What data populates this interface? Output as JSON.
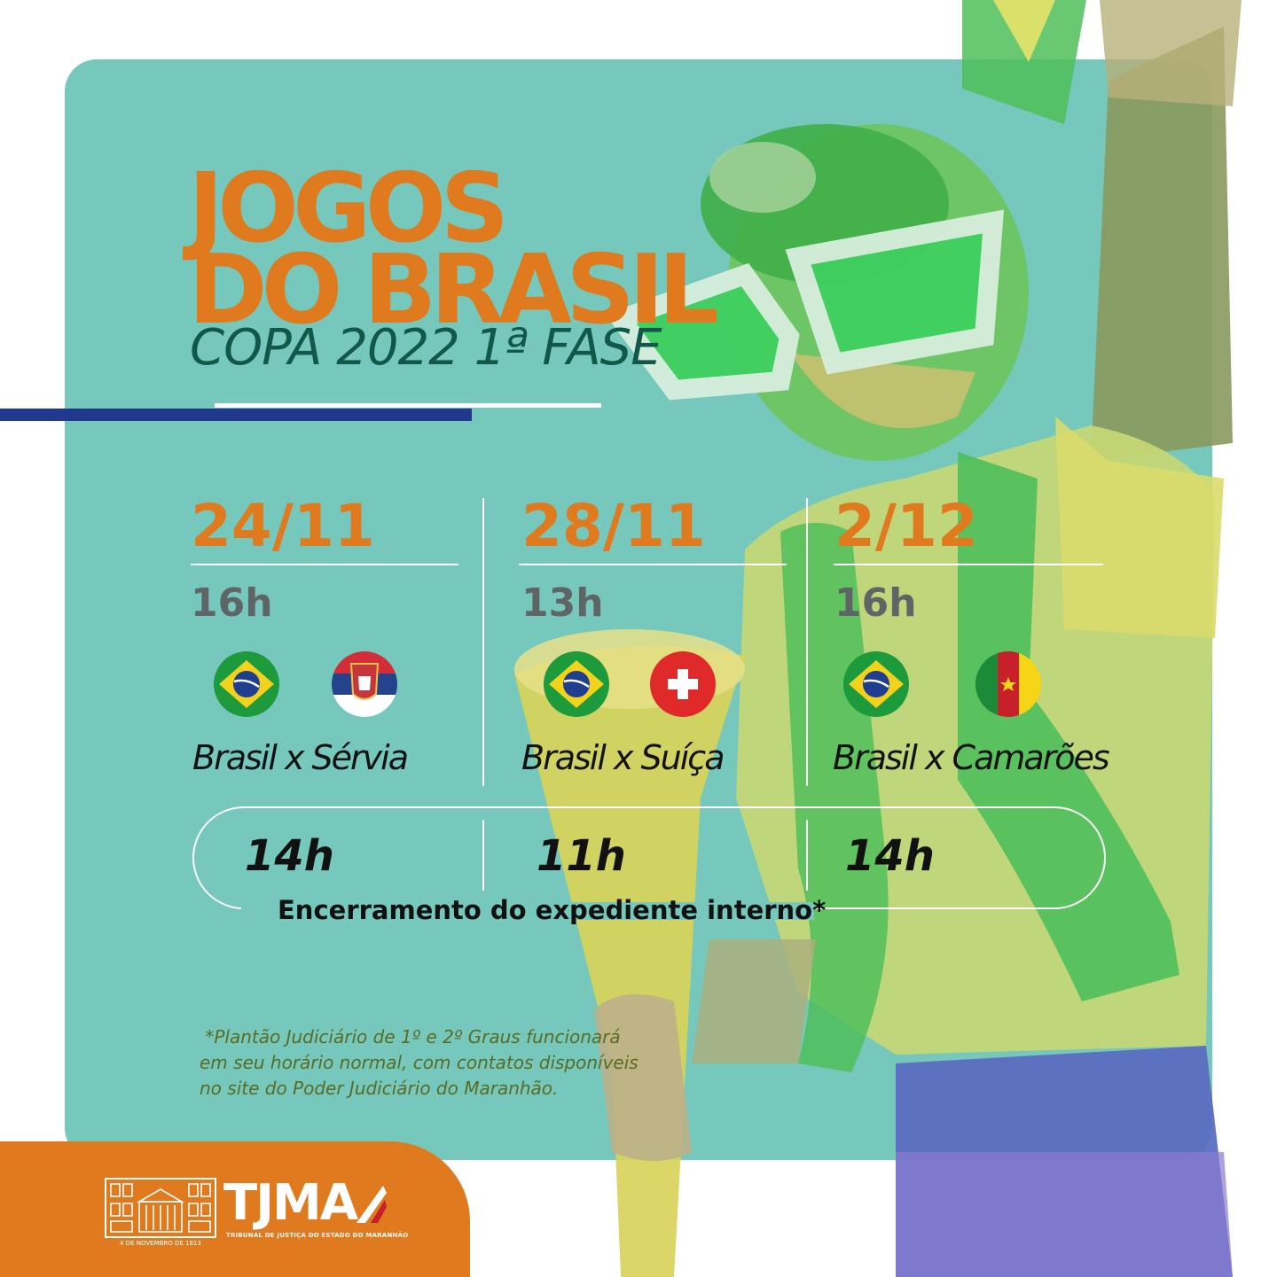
{
  "title_line1": "JOGOS",
  "title_line2": "DO BRASIL",
  "subtitle": "COPA 2022 1ª FASE",
  "games": [
    {
      "date": "24/11",
      "time": "16h",
      "match": "Brasil x Sérvia",
      "flags": [
        "brazil-flag-icon",
        "serbia-flag-icon"
      ],
      "closing": "14h"
    },
    {
      "date": "28/11",
      "time": "13h",
      "match": "Brasil x Suíça",
      "flags": [
        "brazil-flag-icon",
        "switzerland-flag-icon"
      ],
      "closing": "11h"
    },
    {
      "date": "2/12",
      "time": "16h",
      "match": "Brasil x Camarões",
      "flags": [
        "brazil-flag-icon",
        "cameroon-flag-icon"
      ],
      "closing": "14h"
    }
  ],
  "closing_label": "Encerramento do expediente interno*",
  "note_lines": [
    " *Plantão Judiciário de 1º e 2º Graus funcionará",
    "em seu horário normal, com contatos disponíveis",
    "no site do Poder Judiciário do Maranhão."
  ],
  "logo": {
    "name": "TJMA",
    "subtitle": "TRIBUNAL DE JUSTIÇA DO ESTADO DO MARANHÃO",
    "founded": "4 DE NOVEMBRO DE 1813"
  },
  "colors": {
    "panel": "#75c8bb",
    "accent": "#e07a1f",
    "subtitle": "#11584a",
    "bar": "#20388e"
  }
}
